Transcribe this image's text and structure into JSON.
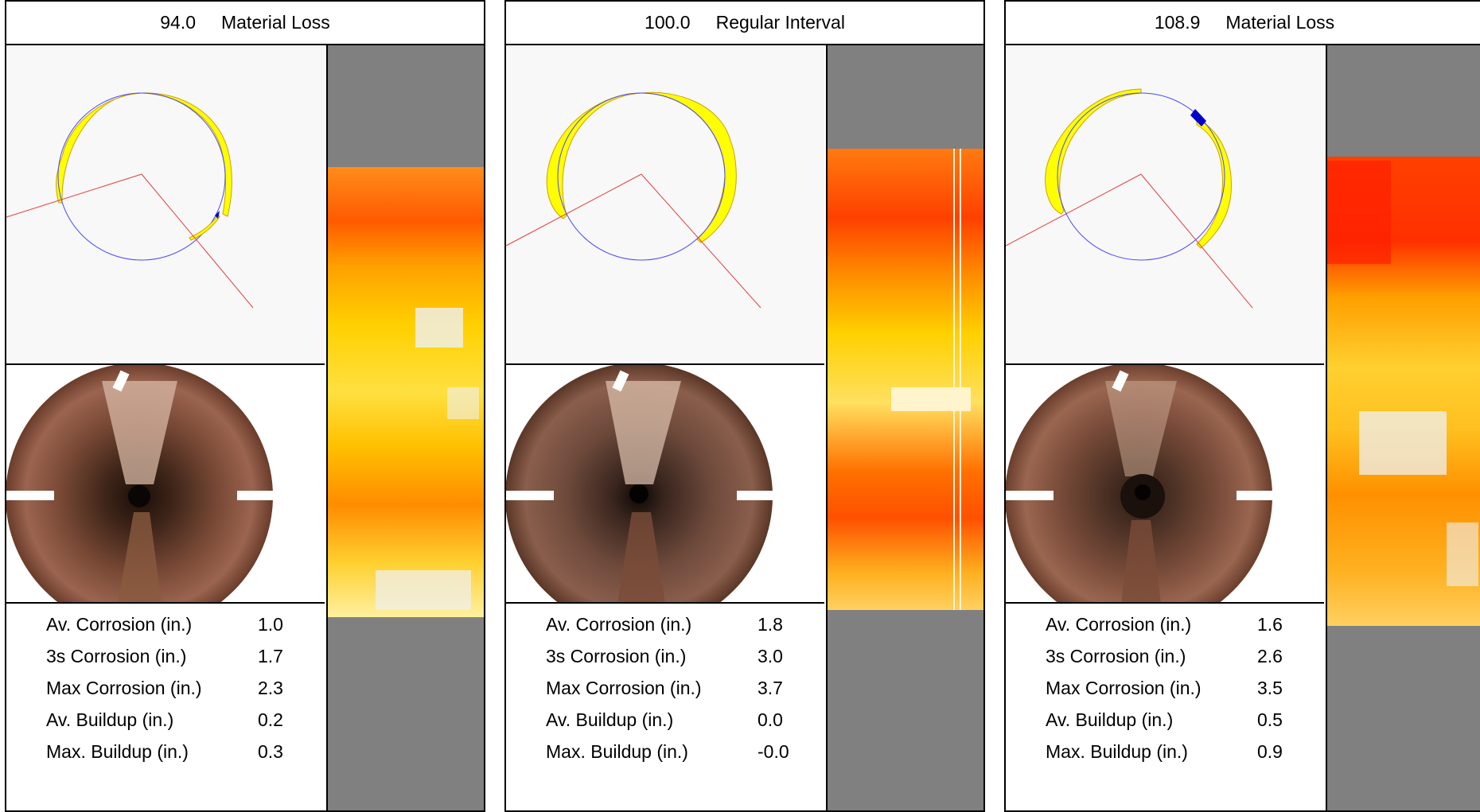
{
  "panels": [
    {
      "distance": "94.0",
      "event": "Material Loss",
      "stats": [
        {
          "label": "Av. Corrosion (in.)",
          "value": "1.0"
        },
        {
          "label": "3s Corrosion (in.)",
          "value": "1.7"
        },
        {
          "label": "Max Corrosion (in.)",
          "value": "2.3"
        },
        {
          "label": "Av. Buildup (in.)",
          "value": "0.2"
        },
        {
          "label": "Max. Buildup (in.)",
          "value": "0.3"
        }
      ]
    },
    {
      "distance": "100.0",
      "event": "Regular Interval",
      "stats": [
        {
          "label": "Av. Corrosion (in.)",
          "value": "1.8"
        },
        {
          "label": "3s Corrosion (in.)",
          "value": "3.0"
        },
        {
          "label": "Max Corrosion (in.)",
          "value": "3.7"
        },
        {
          "label": "Av. Buildup (in.)",
          "value": "0.0"
        },
        {
          "label": "Max. Buildup (in.)",
          "value": "-0.0"
        }
      ]
    },
    {
      "distance": "108.9",
      "event": "Material Loss",
      "stats": [
        {
          "label": "Av. Corrosion (in.)",
          "value": "1.6"
        },
        {
          "label": "3s Corrosion (in.)",
          "value": "2.6"
        },
        {
          "label": "Max Corrosion (in.)",
          "value": "3.5"
        },
        {
          "label": "Av. Buildup (in.)",
          "value": "0.5"
        },
        {
          "label": "Max. Buildup (in.)",
          "value": "0.9"
        }
      ]
    }
  ],
  "colors": {
    "corrosion_fill": "#ffff00",
    "buildup_fill": "#0000cc",
    "pipe_outline": "#4a4aff",
    "laser_line": "#e04040",
    "strip_background": "#808080"
  }
}
